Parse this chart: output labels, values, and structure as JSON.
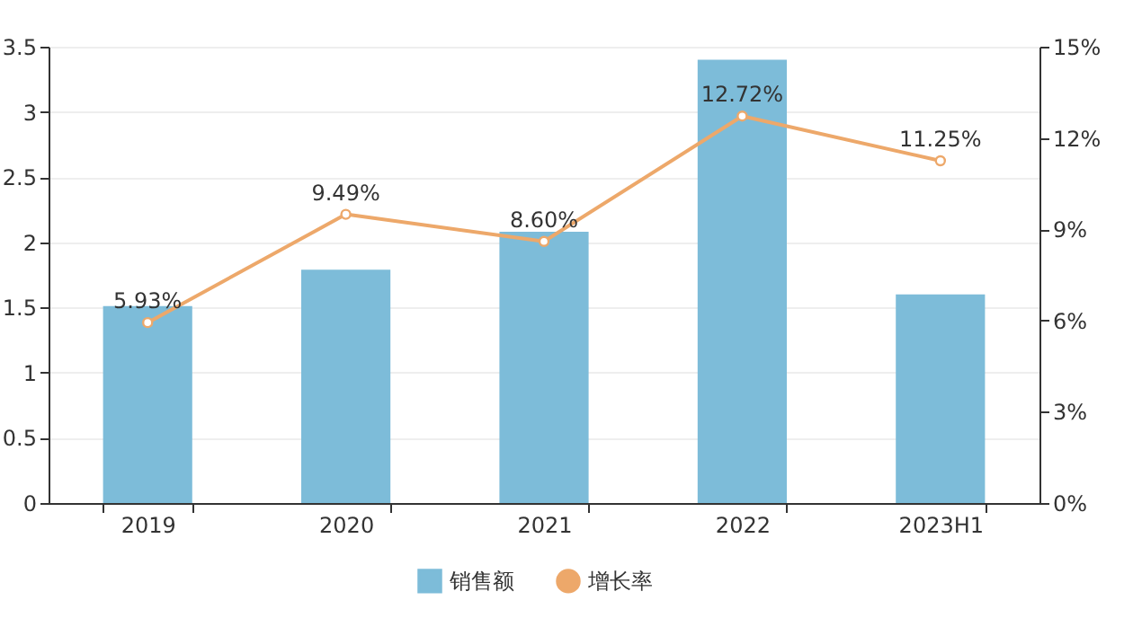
{
  "chart_data": {
    "type": "bar",
    "categories": [
      "2019",
      "2020",
      "2021",
      "2022",
      "2023H1"
    ],
    "series": [
      {
        "name": "销售额",
        "color": "#7dbcd9",
        "values": [
          1.51,
          1.79,
          2.08,
          3.4,
          1.6
        ]
      },
      {
        "name": "增长率",
        "type": "line",
        "axis": "y2",
        "color": "#eda86a",
        "values": [
          5.93,
          9.49,
          8.6,
          12.72,
          11.25
        ],
        "value_labels": [
          "5.93%",
          "9.49%",
          "8.60%",
          "12.72%",
          "11.25%"
        ]
      }
    ],
    "ylim": [
      0,
      3.5
    ],
    "yticks": [
      0,
      0.5,
      1,
      1.5,
      2,
      2.5,
      3,
      3.5
    ],
    "y2lim": [
      0,
      15
    ],
    "y2ticks": [
      {
        "value": 0,
        "label": "0%"
      },
      {
        "value": 3,
        "label": "3%"
      },
      {
        "value": 6,
        "label": "6%"
      },
      {
        "value": 9,
        "label": "9%"
      },
      {
        "value": 12,
        "label": "12%"
      },
      {
        "value": 15,
        "label": "15%"
      }
    ],
    "grid": "y",
    "legend": "bottom",
    "marker": "circle",
    "line_style": "solid"
  }
}
